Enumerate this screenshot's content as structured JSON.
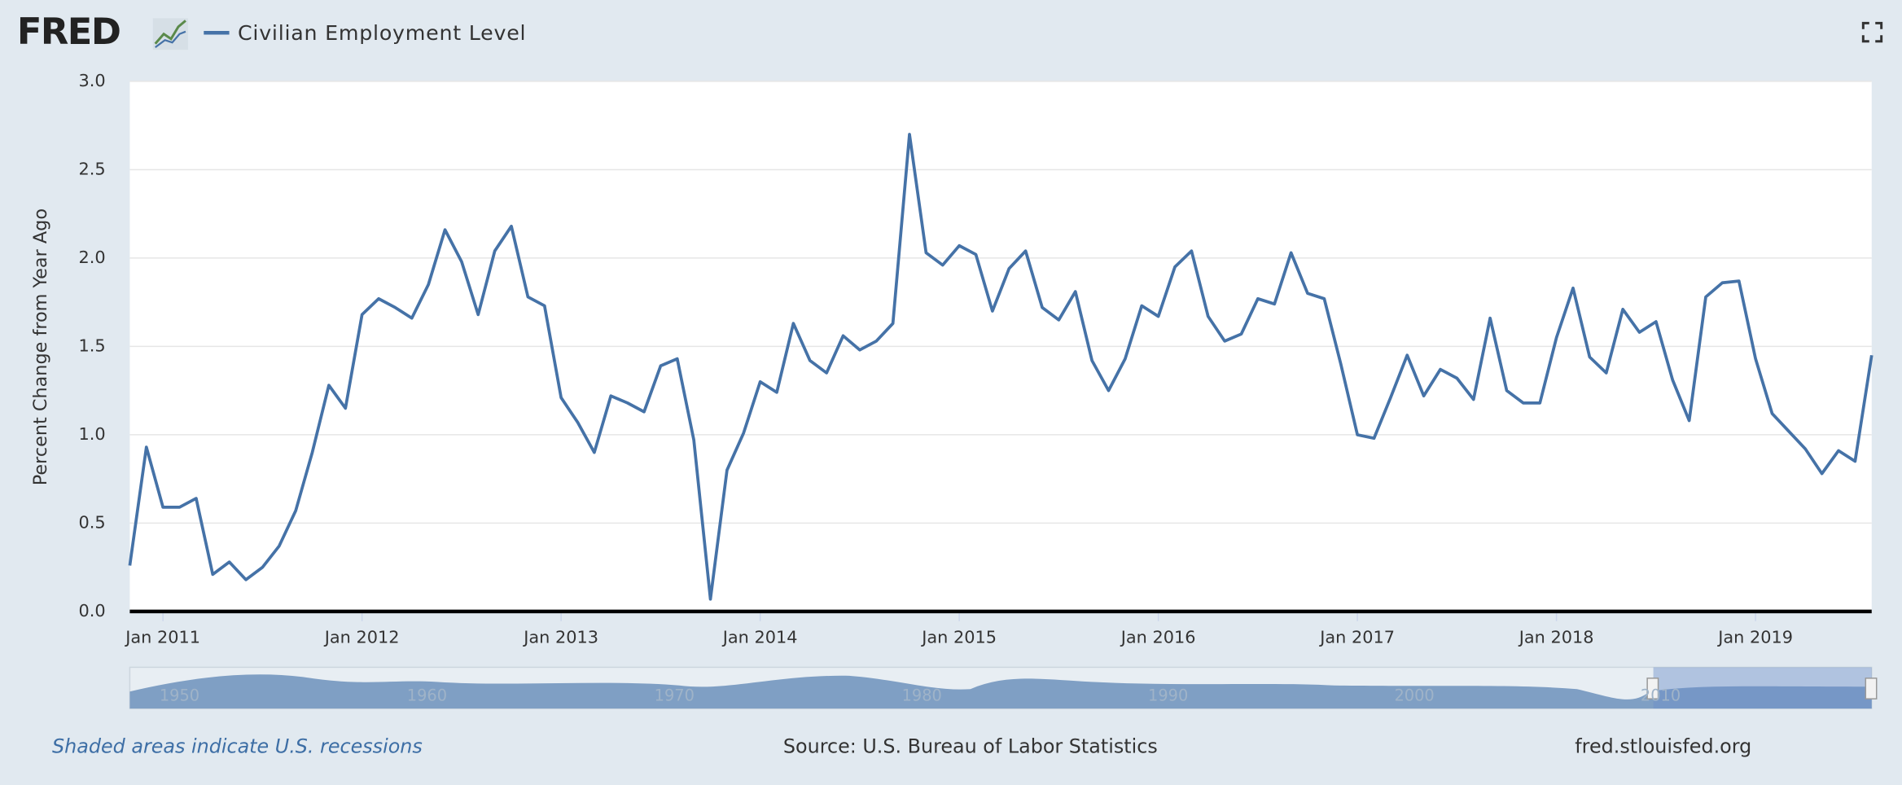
{
  "logo": "FRED",
  "chart_data": {
    "type": "line",
    "y_label": "Percent Change from Year Ago",
    "x": [
      "2010-11",
      "2010-12",
      "2011-01",
      "2011-02",
      "2011-03",
      "2011-04",
      "2011-05",
      "2011-06",
      "2011-07",
      "2011-08",
      "2011-09",
      "2011-10",
      "2011-11",
      "2011-12",
      "2012-01",
      "2012-02",
      "2012-03",
      "2012-04",
      "2012-05",
      "2012-06",
      "2012-07",
      "2012-08",
      "2012-09",
      "2012-10",
      "2012-11",
      "2012-12",
      "2013-01",
      "2013-02",
      "2013-03",
      "2013-04",
      "2013-05",
      "2013-06",
      "2013-07",
      "2013-08",
      "2013-09",
      "2013-10",
      "2013-11",
      "2013-12",
      "2014-01",
      "2014-02",
      "2014-03",
      "2014-04",
      "2014-05",
      "2014-06",
      "2014-07",
      "2014-08",
      "2014-09",
      "2014-10",
      "2014-11",
      "2014-12",
      "2015-01",
      "2015-02",
      "2015-03",
      "2015-04",
      "2015-05",
      "2015-06",
      "2015-07",
      "2015-08",
      "2015-09",
      "2015-10",
      "2015-11",
      "2015-12",
      "2016-01",
      "2016-02",
      "2016-03",
      "2016-04",
      "2016-05",
      "2016-06",
      "2016-07",
      "2016-08",
      "2016-09",
      "2016-10",
      "2016-11",
      "2016-12",
      "2017-01",
      "2017-02",
      "2017-03",
      "2017-04",
      "2017-05",
      "2017-06",
      "2017-07",
      "2017-08",
      "2017-09",
      "2017-10",
      "2017-11",
      "2017-12",
      "2018-01",
      "2018-02",
      "2018-03",
      "2018-04",
      "2018-05",
      "2018-06",
      "2018-07",
      "2018-08",
      "2018-09",
      "2018-10",
      "2018-11",
      "2018-12",
      "2019-01",
      "2019-02",
      "2019-03",
      "2019-04",
      "2019-05",
      "2019-06",
      "2019-07",
      "2019-08"
    ],
    "series": [
      {
        "name": "Civilian Employment Level",
        "color": "#4572a7",
        "values": [
          0.26,
          0.93,
          0.59,
          0.59,
          0.64,
          0.21,
          0.28,
          0.18,
          0.25,
          0.37,
          0.57,
          0.9,
          1.28,
          1.15,
          1.68,
          1.77,
          1.72,
          1.66,
          1.85,
          2.16,
          1.98,
          1.68,
          2.04,
          2.18,
          1.78,
          1.73,
          1.21,
          1.07,
          0.9,
          1.22,
          1.18,
          1.13,
          1.39,
          1.43,
          0.97,
          0.07,
          0.8,
          1.01,
          1.3,
          1.24,
          1.63,
          1.42,
          1.35,
          1.56,
          1.48,
          1.53,
          1.63,
          2.7,
          2.03,
          1.96,
          2.07,
          2.02,
          1.7,
          1.94,
          2.04,
          1.72,
          1.65,
          1.81,
          1.42,
          1.25,
          1.43,
          1.73,
          1.67,
          1.95,
          2.04,
          1.67,
          1.53,
          1.57,
          1.77,
          1.74,
          2.03,
          1.8,
          1.77,
          1.4,
          1.0,
          0.98,
          1.21,
          1.45,
          1.22,
          1.37,
          1.32,
          1.2,
          1.66,
          1.25,
          1.18,
          1.18,
          1.55,
          1.83,
          1.44,
          1.35,
          1.71,
          1.58,
          1.64,
          1.31,
          1.08,
          1.78,
          1.86,
          1.87,
          1.43,
          1.12,
          1.02,
          0.92,
          0.78,
          0.91,
          0.85,
          1.45
        ]
      }
    ],
    "xlim": [
      "2010-11",
      "2019-08"
    ],
    "xticks": [
      {
        "value": "2011-01",
        "label": "Jan 2011"
      },
      {
        "value": "2012-01",
        "label": "Jan 2012"
      },
      {
        "value": "2013-01",
        "label": "Jan 2013"
      },
      {
        "value": "2014-01",
        "label": "Jan 2014"
      },
      {
        "value": "2015-01",
        "label": "Jan 2015"
      },
      {
        "value": "2016-01",
        "label": "Jan 2016"
      },
      {
        "value": "2017-01",
        "label": "Jan 2017"
      },
      {
        "value": "2018-01",
        "label": "Jan 2018"
      },
      {
        "value": "2019-01",
        "label": "Jan 2019"
      }
    ],
    "ylim": [
      0,
      3
    ],
    "yticks": [
      {
        "value": 0,
        "label": "0.0"
      },
      0.5,
      {
        "value": 1,
        "label": "1.0"
      },
      1.5,
      {
        "value": 2,
        "label": "2.0"
      },
      2.5,
      {
        "value": 3,
        "label": "3.0"
      }
    ],
    "grid": true
  },
  "navigator": {
    "labels": [
      "1950",
      "1960",
      "1970",
      "1980",
      "1990",
      "2000",
      "2010"
    ]
  },
  "footer": {
    "recessions": "Shaded areas indicate U.S. recessions",
    "source": "Source: U.S. Bureau of Labor Statistics",
    "site": "fred.stlouisfed.org"
  }
}
